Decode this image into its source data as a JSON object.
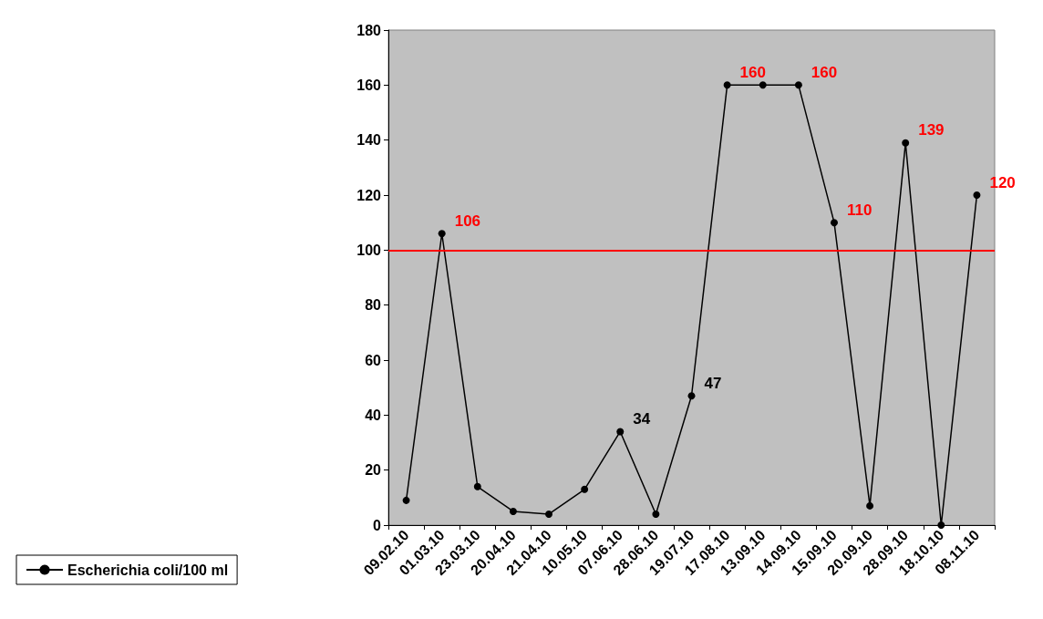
{
  "chart_data": {
    "type": "line",
    "categories": [
      "09.02.10",
      "01.03.10",
      "23.03.10",
      "20.04.10",
      "21.04.10",
      "10.05.10",
      "07.06.10",
      "28.06.10",
      "19.07.10",
      "17.08.10",
      "13.09.10",
      "14.09.10",
      "15.09.10",
      "20.09.10",
      "28.09.10",
      "18.10.10",
      "08.11.10"
    ],
    "series": [
      {
        "name": "Escherichia coli/100 ml",
        "color": "#000000",
        "values": [
          9,
          106,
          14,
          5,
          4,
          13,
          34,
          4,
          47,
          160,
          160,
          160,
          110,
          7,
          139,
          0,
          120
        ],
        "value_labels": [
          null,
          "106",
          null,
          null,
          null,
          null,
          "34",
          null,
          "47",
          "160",
          null,
          "160",
          "110",
          null,
          "139",
          null,
          "120"
        ]
      }
    ],
    "ylim": [
      0,
      180
    ],
    "yticks": [
      0,
      20,
      40,
      60,
      80,
      100,
      120,
      140,
      160,
      180
    ],
    "ref_lines": [
      {
        "axis": "y",
        "value": 100,
        "color": "#ff0000"
      }
    ],
    "grid": false,
    "legend": "bottom left",
    "marker": "circle",
    "line_style": "solid"
  }
}
